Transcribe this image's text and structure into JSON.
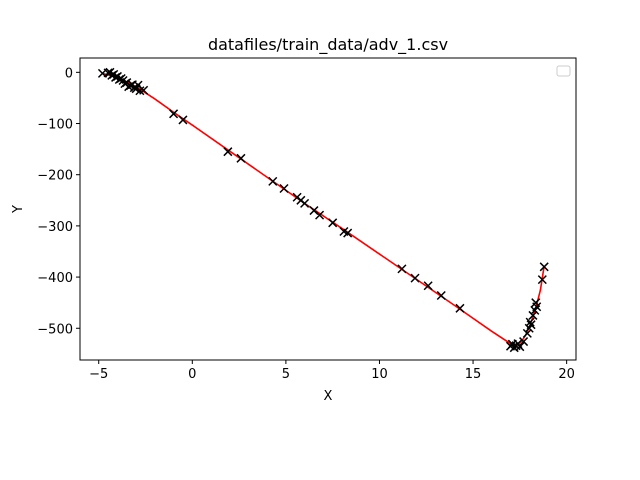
{
  "chart_data": {
    "type": "scatter",
    "title": "datafiles/train_data/adv_1.csv",
    "xlabel": "X",
    "ylabel": "Y",
    "xlim": [
      -6,
      20.5
    ],
    "ylim": [
      -562,
      28
    ],
    "xticks": [
      -5,
      0,
      5,
      10,
      15,
      20
    ],
    "yticks": [
      0,
      -100,
      -200,
      -300,
      -400,
      -500
    ],
    "grid": false,
    "legend": {
      "placement": "upper-right",
      "entries": []
    },
    "colors": {
      "fit_line": "#ff0000",
      "points": "#000000"
    },
    "series": [
      {
        "kind": "scatter-x-markers",
        "points": [
          [
            -4.8,
            -2
          ],
          [
            -4.5,
            -1
          ],
          [
            -4.4,
            0
          ],
          [
            -4.3,
            -6
          ],
          [
            -4.2,
            -4
          ],
          [
            -4.1,
            -10
          ],
          [
            -4.0,
            -8
          ],
          [
            -3.9,
            -14
          ],
          [
            -3.8,
            -12
          ],
          [
            -3.7,
            -16
          ],
          [
            -3.6,
            -22
          ],
          [
            -3.5,
            -20
          ],
          [
            -3.4,
            -28
          ],
          [
            -3.3,
            -26
          ],
          [
            -3.2,
            -24
          ],
          [
            -3.1,
            -30
          ],
          [
            -3.0,
            -32
          ],
          [
            -2.9,
            -25
          ],
          [
            -2.8,
            -36
          ],
          [
            -2.6,
            -35
          ],
          [
            -1.0,
            -81
          ],
          [
            -0.5,
            -93
          ],
          [
            1.9,
            -155
          ],
          [
            2.6,
            -168
          ],
          [
            4.3,
            -213
          ],
          [
            4.9,
            -227
          ],
          [
            5.6,
            -244
          ],
          [
            5.8,
            -250
          ],
          [
            6.0,
            -256
          ],
          [
            6.5,
            -270
          ],
          [
            6.8,
            -279
          ],
          [
            7.5,
            -294
          ],
          [
            8.1,
            -311
          ],
          [
            8.3,
            -314
          ],
          [
            11.2,
            -384
          ],
          [
            11.9,
            -402
          ],
          [
            12.6,
            -417
          ],
          [
            13.3,
            -436
          ],
          [
            14.3,
            -461
          ],
          [
            17.0,
            -535
          ],
          [
            17.1,
            -531
          ],
          [
            17.2,
            -538
          ],
          [
            17.3,
            -534
          ],
          [
            17.4,
            -530
          ],
          [
            17.5,
            -536
          ],
          [
            17.7,
            -526
          ],
          [
            17.9,
            -510
          ],
          [
            18.0,
            -500
          ],
          [
            18.05,
            -488
          ],
          [
            18.1,
            -493
          ],
          [
            18.2,
            -475
          ],
          [
            18.3,
            -465
          ],
          [
            18.35,
            -450
          ],
          [
            18.4,
            -458
          ],
          [
            18.7,
            -405
          ],
          [
            18.8,
            -380
          ]
        ]
      },
      {
        "kind": "fit-line",
        "points": [
          [
            -4.8,
            -2
          ],
          [
            -4.0,
            -10
          ],
          [
            -3.0,
            -28
          ],
          [
            -2.0,
            -52
          ],
          [
            -1.0,
            -78
          ],
          [
            0.0,
            -103
          ],
          [
            2.0,
            -154
          ],
          [
            4.0,
            -205
          ],
          [
            6.0,
            -256
          ],
          [
            8.0,
            -305
          ],
          [
            10.0,
            -355
          ],
          [
            12.0,
            -405
          ],
          [
            14.0,
            -455
          ],
          [
            16.0,
            -506
          ],
          [
            17.0,
            -530
          ],
          [
            17.2,
            -533
          ],
          [
            17.4,
            -531
          ],
          [
            17.6,
            -525
          ],
          [
            17.8,
            -514
          ],
          [
            18.0,
            -498
          ],
          [
            18.2,
            -478
          ],
          [
            18.4,
            -454
          ],
          [
            18.6,
            -425
          ],
          [
            18.8,
            -378
          ]
        ]
      }
    ]
  }
}
